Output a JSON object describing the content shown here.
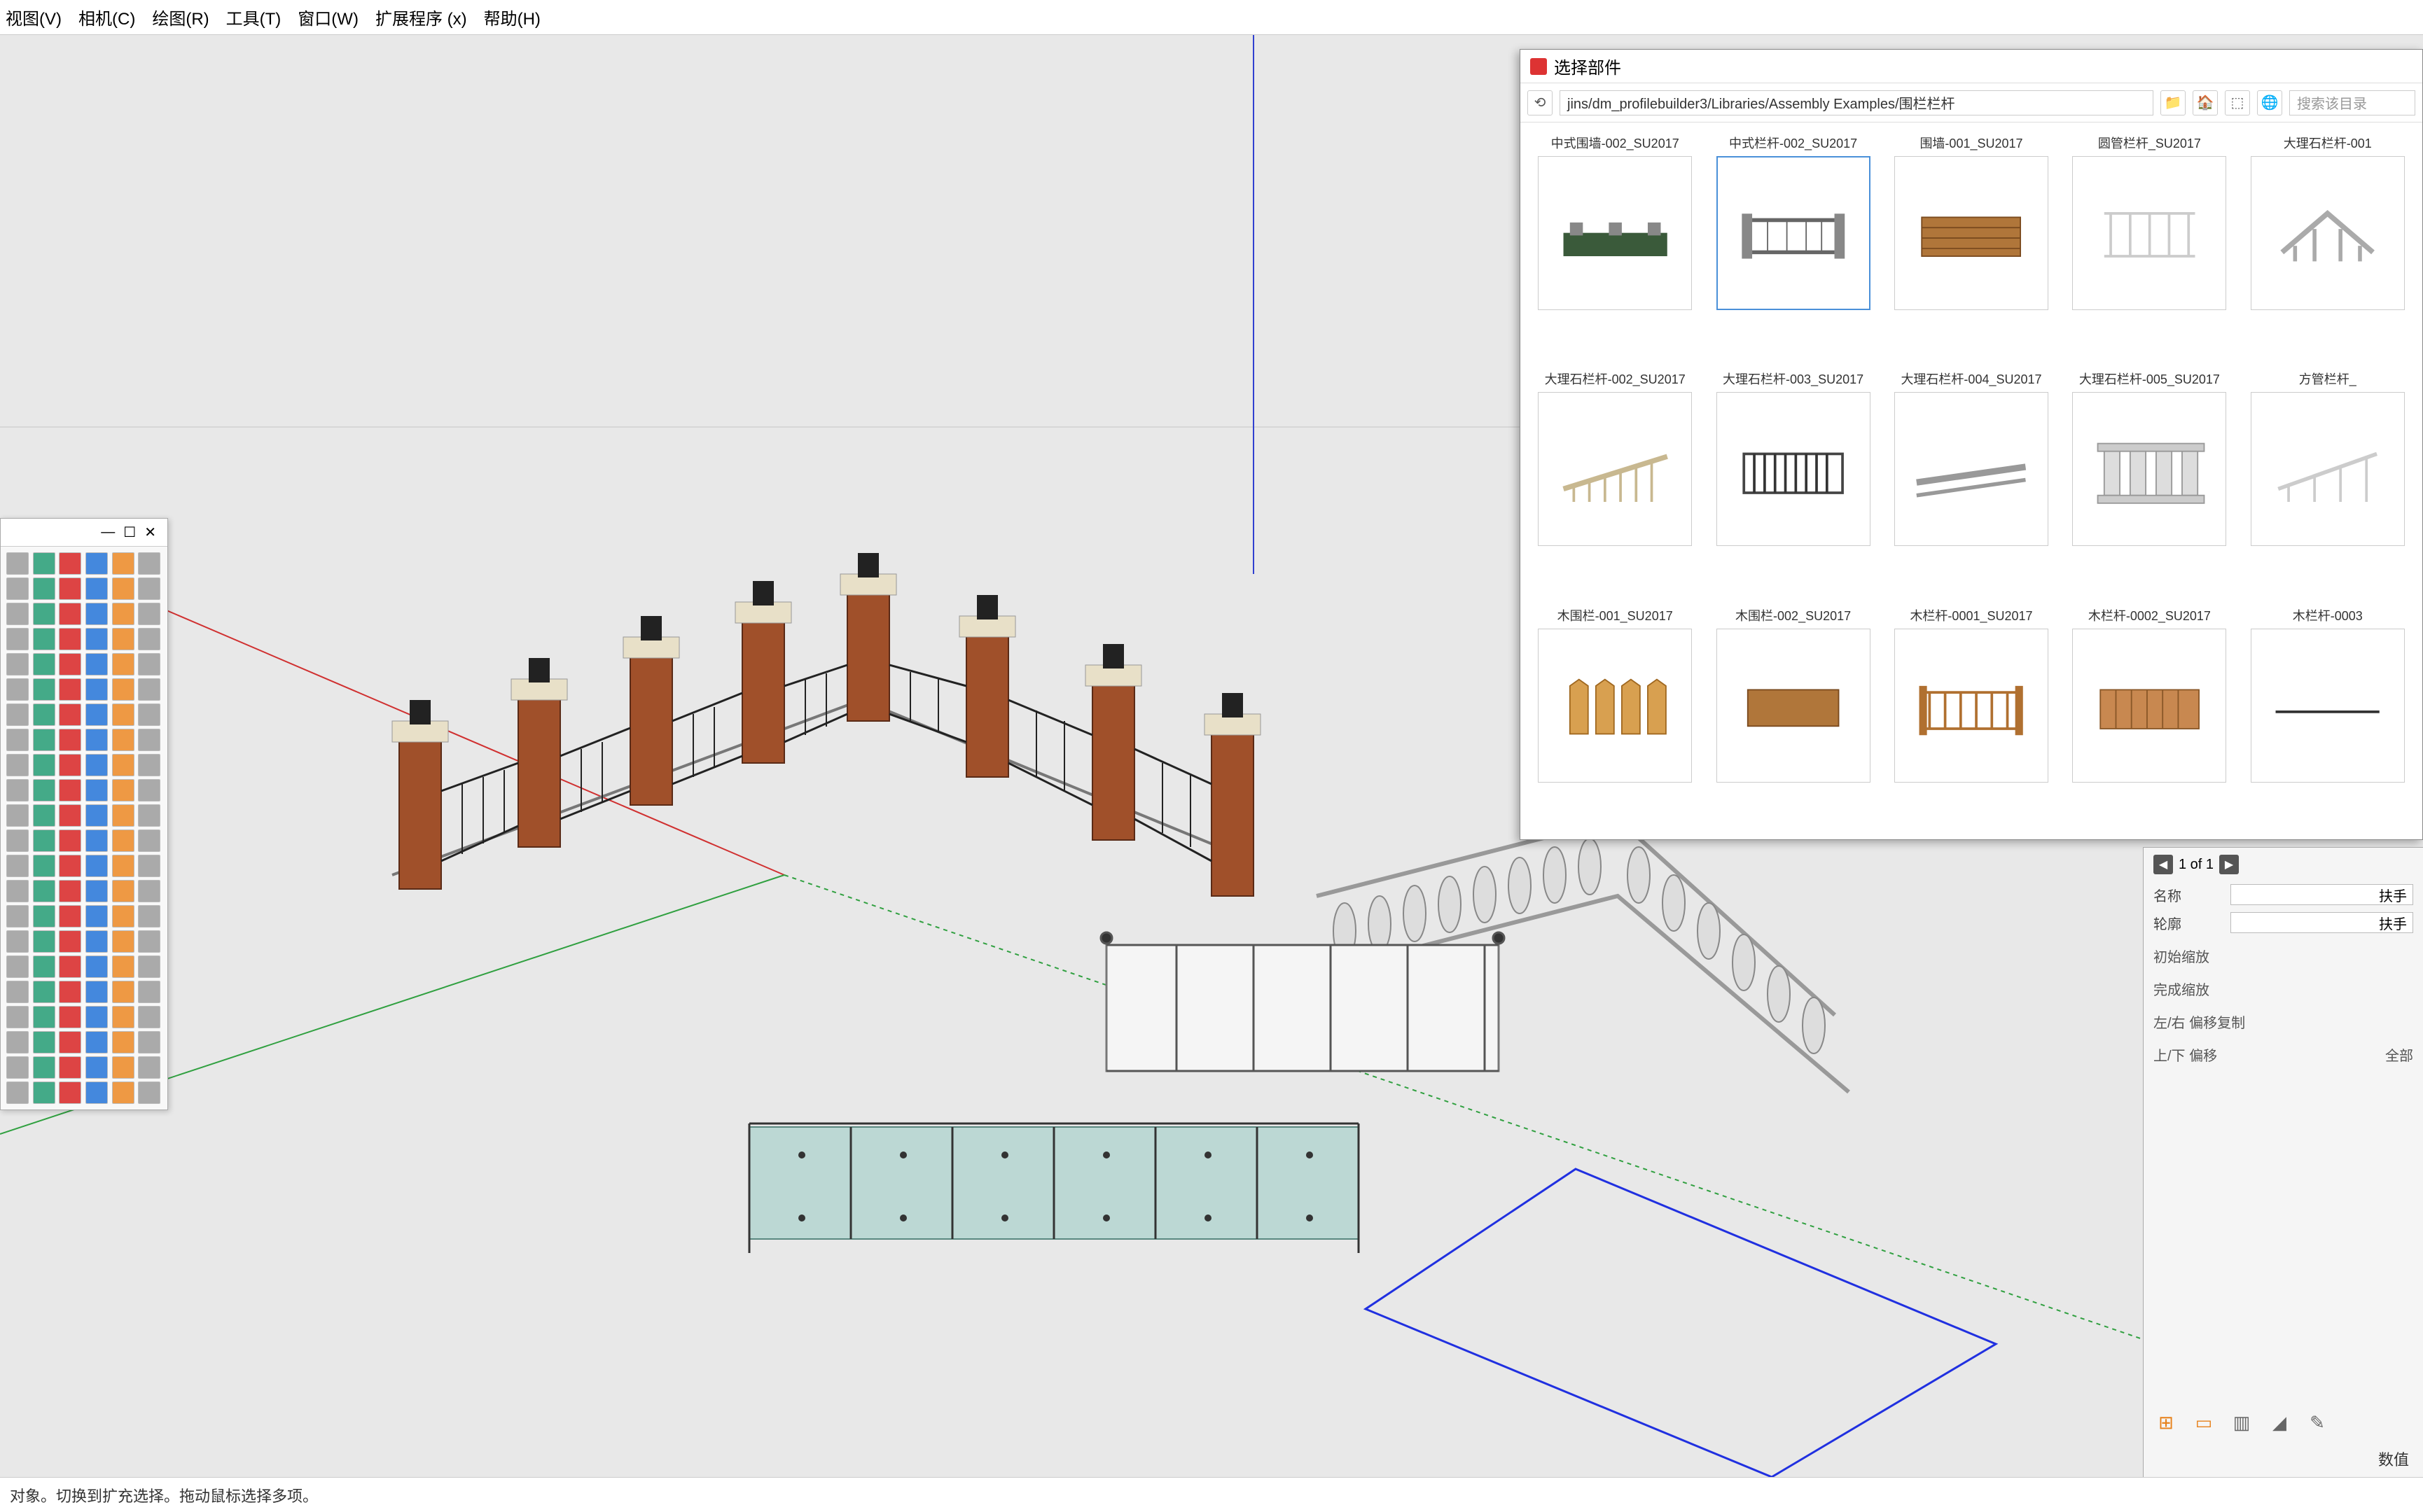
{
  "menu": {
    "items": [
      "视图(V)",
      "相机(C)",
      "绘图(R)",
      "工具(T)",
      "窗口(W)",
      "扩展程序 (x)",
      "帮助(H)"
    ]
  },
  "tool_palette": {
    "window_controls": [
      "—",
      "☐",
      "✕"
    ],
    "rows": 22,
    "cols": 6
  },
  "browser": {
    "title": "选择部件",
    "nav_back": "⟲",
    "path": "jins/dm_profilebuilder3/Libraries/Assembly Examples/围栏栏杆",
    "nav_icons": [
      "📁",
      "🏠",
      "⬚",
      "🌐"
    ],
    "search_placeholder": "搜索该目录",
    "items": [
      {
        "label": "中式围墙-002_SU2017",
        "kind": "wall-brick"
      },
      {
        "label": "中式栏杆-002_SU2017",
        "kind": "rail-chinese",
        "selected": true
      },
      {
        "label": "围墙-001_SU2017",
        "kind": "wall-wood"
      },
      {
        "label": "圆管栏杆_SU2017",
        "kind": "rail-pipe"
      },
      {
        "label": "大理石栏杆-001",
        "kind": "rail-marble-angle"
      },
      {
        "label": "大理石栏杆-002_SU2017",
        "kind": "rail-marble"
      },
      {
        "label": "大理石栏杆-003_SU2017",
        "kind": "rail-marble-dark"
      },
      {
        "label": "大理石栏杆-004_SU2017",
        "kind": "rail-marble-flat"
      },
      {
        "label": "大理石栏杆-005_SU2017",
        "kind": "rail-columns"
      },
      {
        "label": "方管栏杆_",
        "kind": "rail-square"
      },
      {
        "label": "木围栏-001_SU2017",
        "kind": "fence-picket"
      },
      {
        "label": "木围栏-002_SU2017",
        "kind": "fence-panel"
      },
      {
        "label": "木栏杆-0001_SU2017",
        "kind": "fence-rail"
      },
      {
        "label": "木栏杆-0002_SU2017",
        "kind": "fence-rail2"
      },
      {
        "label": "木栏杆-0003",
        "kind": "fence-line"
      }
    ]
  },
  "props": {
    "pager": "1 of 1",
    "name_label": "名称",
    "name_value": "扶手",
    "pos_label": "轮廓",
    "pos_value": "扶手",
    "sections": [
      "初始缩放",
      "完成缩放",
      "左/右 偏移复制",
      "上/下 偏移"
    ],
    "full_label": "全部",
    "value_label": "数值"
  },
  "statusbar": {
    "text": "对象。切换到扩充选择。拖动鼠标选择多项。"
  },
  "viewport": {
    "bg": "#e8e8e8",
    "axis_red": "#d03030",
    "axis_green": "#30a040",
    "axis_blue": "#3040d0",
    "selection_blue": "#2030e0"
  }
}
